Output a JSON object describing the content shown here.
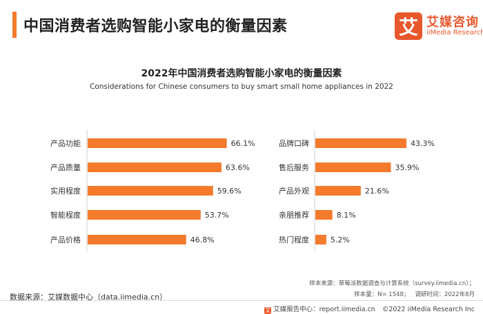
{
  "page": {
    "title": "中国消费者选购智能小家电的衡量因素"
  },
  "logo": {
    "icon_char": "艾",
    "name_cn": "艾媒咨询",
    "name_en": "iiMedia Research",
    "color": "#e8582c"
  },
  "chart_data": {
    "type": "bar",
    "orientation": "horizontal",
    "title": "2022年中国消费者选购智能小家电的衡量因素",
    "subtitle": "Considerations for Chinese consumers to buy smart small home appliances in 2022",
    "unit": "%",
    "bar_color": "#f47a2c",
    "left_panel": {
      "categories": [
        "产品功能",
        "产品质量",
        "实用程度",
        "智能程度",
        "产品价格"
      ],
      "values": [
        66.1,
        63.6,
        59.6,
        53.7,
        46.8
      ],
      "labels": [
        "66.1%",
        "63.6%",
        "59.6%",
        "53.7%",
        "46.8%"
      ]
    },
    "right_panel": {
      "categories": [
        "品牌口碑",
        "售后服务",
        "产品外观",
        "亲朋推荐",
        "热门程度"
      ],
      "values": [
        43.3,
        35.9,
        21.6,
        8.1,
        5.2
      ],
      "labels": [
        "43.3%",
        "35.9%",
        "21.6%",
        "8.1%",
        "5.2%"
      ]
    }
  },
  "footer": {
    "data_source": "数据来源：艾媒数据中心（data.iimedia.cn）",
    "sample_source": "样本来源：草莓派数据调查与计算系统（survey.iimedia.cn）；",
    "sample_size": "样本量：N= 1548；",
    "survey_time": "调研时间：2022年8月",
    "report_label": "艾媒报告中心：report.iimedia.cn",
    "copyright": "©2022  iiMedia Research  Inc"
  }
}
